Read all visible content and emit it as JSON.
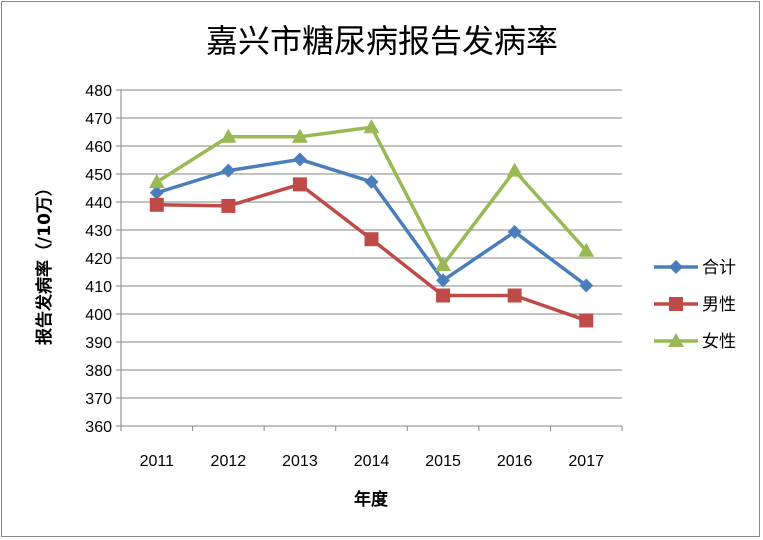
{
  "chart_data": {
    "type": "line",
    "title": "嘉兴市糖尿病报告发病率",
    "xlabel": "年度",
    "ylabel": "报告发病率（/10万）",
    "categories": [
      "2011",
      "2012",
      "2013",
      "2014",
      "2015",
      "2016",
      "2017"
    ],
    "ylim": [
      360,
      480
    ],
    "yticks": [
      360,
      370,
      380,
      390,
      400,
      410,
      420,
      430,
      440,
      450,
      460,
      470,
      480
    ],
    "grid": true,
    "legend_position": "right",
    "series": [
      {
        "name": "合计",
        "color": "#4a7ebb",
        "marker": "diamond",
        "values": [
          443.3,
          451.2,
          455.2,
          447.2,
          412.0,
          429.3,
          410.2
        ]
      },
      {
        "name": "男性",
        "color": "#be4b48",
        "marker": "square",
        "values": [
          439.0,
          438.6,
          446.3,
          426.7,
          406.6,
          406.6,
          397.7
        ]
      },
      {
        "name": "女性",
        "color": "#98b954",
        "marker": "triangle",
        "values": [
          447.1,
          463.3,
          463.3,
          466.7,
          417.5,
          451.2,
          422.6
        ]
      }
    ]
  }
}
